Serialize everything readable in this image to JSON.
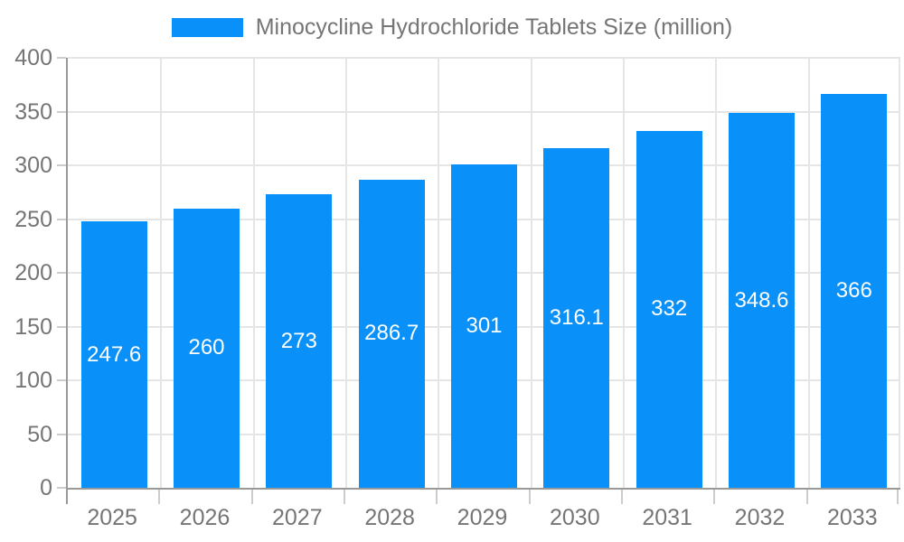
{
  "legend": {
    "label": "Minocycline Hydrochloride Tablets Size (million)",
    "swatch_color": "#0A90F9"
  },
  "chart_data": {
    "type": "bar",
    "title": "Minocycline Hydrochloride Tablets Size (million)",
    "categories": [
      "2025",
      "2026",
      "2027",
      "2028",
      "2029",
      "2030",
      "2031",
      "2032",
      "2033"
    ],
    "values": [
      247.6,
      260,
      273,
      286.7,
      301,
      316.1,
      332,
      348.6,
      366
    ],
    "xlabel": "",
    "ylabel": "",
    "ylim": [
      0,
      400
    ],
    "yticks": [
      0,
      50,
      100,
      150,
      200,
      250,
      300,
      350,
      400
    ],
    "grid": true,
    "legend_position": "top",
    "bar_label_position": "inside-middle",
    "colors": {
      "bar": "#0A90F9",
      "bar_label": "#ffffff",
      "axis_line": "#999999",
      "grid_line": "#e5e5e5",
      "tick_line": "#cccccc",
      "tick_text": "#757575",
      "legend_text": "#757575",
      "background": "#ffffff"
    }
  }
}
